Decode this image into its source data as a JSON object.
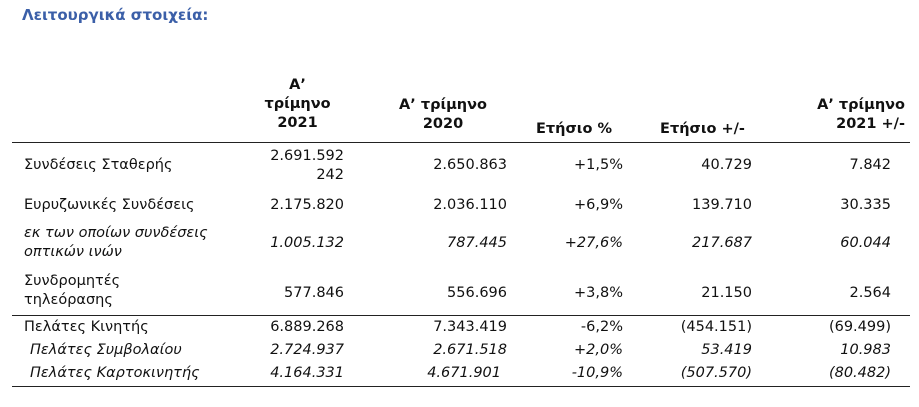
{
  "title": "Λειτουργικά στοιχεία:",
  "headers": {
    "q1_2021": "Α’\nτρίμηνο\n2021",
    "q1_2020": "Α’ τρίμηνο\n2020",
    "yoy_pct": "Ετήσιο  %",
    "yoy_abs": "Ετήσιο  +/-",
    "q1_2021_change": "Α’ τρίμηνο\n2021 +/-"
  },
  "rows": [
    {
      "label": "Συνδέσεις Σταθερής",
      "q1_2021": "2.691.592\n242",
      "q1_2020": "2.650.863",
      "yoy_pct": "+1,5%",
      "yoy_abs": "40.729",
      "q_change": "7.842"
    },
    {
      "label": "Ευρυζωνικές Συνδέσεις",
      "q1_2021": "2.175.820",
      "q1_2020": "2.036.110",
      "yoy_pct": "+6,9%",
      "yoy_abs": "139.710",
      "q_change": "30.335"
    },
    {
      "label": "εκ των οποίων συνδέσεις\nοπτικών ινών",
      "q1_2021": "1.005.132",
      "q1_2020": "787.445",
      "yoy_pct": "+27,6%",
      "yoy_abs": "217.687",
      "q_change": "60.044"
    },
    {
      "label": "Συνδρομητές\nτηλεόρασης",
      "q1_2021": "577.846",
      "q1_2020": "556.696",
      "yoy_pct": "+3,8%",
      "yoy_abs": "21.150",
      "q_change": "2.564"
    },
    {
      "label": "Πελάτες Κινητής",
      "q1_2021": "6.889.268",
      "q1_2020": "7.343.419",
      "yoy_pct": "-6,2%",
      "yoy_abs": "(454.151)",
      "q_change": "(69.499)"
    },
    {
      "label": "Πελάτες Συμβολαίου",
      "q1_2021": "2.724.937",
      "q1_2020": "2.671.518",
      "yoy_pct": "+2,0%",
      "yoy_abs": "53.419",
      "q_change": "10.983"
    },
    {
      "label": "Πελάτες Καρτοκινητής",
      "q1_2021": "4.164.331",
      "q1_2020": "4.671.901",
      "yoy_pct": "-10,9%",
      "yoy_abs": "(507.570)",
      "q_change": "(80.482)"
    }
  ],
  "colors": {
    "title": "#3b5fa8",
    "rule": "#222222"
  }
}
